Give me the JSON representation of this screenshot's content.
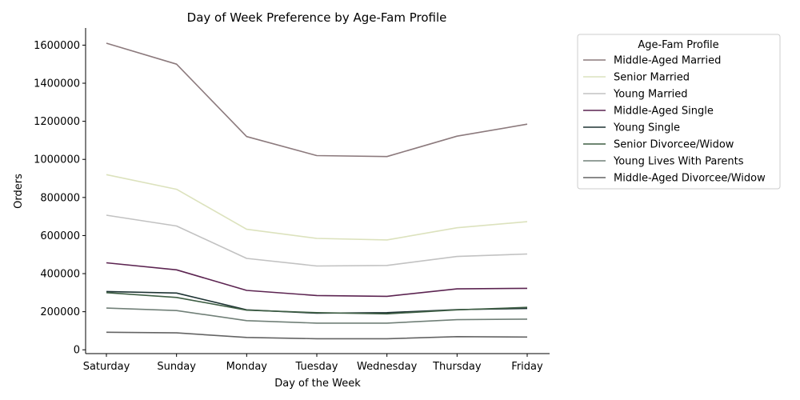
{
  "chart_data": {
    "type": "line",
    "title": "Day of Week Preference by Age-Fam Profile",
    "xlabel": "Day of the Week",
    "ylabel": "Orders",
    "categories": [
      "Saturday",
      "Sunday",
      "Monday",
      "Tuesday",
      "Wednesday",
      "Thursday",
      "Friday"
    ],
    "ylim": [
      -20000,
      1690000
    ],
    "yticks": [
      0,
      200000,
      400000,
      600000,
      800000,
      1000000,
      1200000,
      1400000,
      1600000
    ],
    "ytick_labels": [
      "0",
      "200000",
      "400000",
      "600000",
      "800000",
      "1000000",
      "1200000",
      "1400000",
      "1600000"
    ],
    "grid": false,
    "legend": {
      "title": "Age-Fam Profile",
      "placement": "outside-right"
    },
    "series": [
      {
        "name": "Middle-Aged Married",
        "color": "#8c7a7d",
        "values": [
          1610000,
          1500000,
          1120000,
          1020000,
          1015000,
          1122000,
          1185000
        ]
      },
      {
        "name": "Senior Married",
        "color": "#dce2bd",
        "values": [
          920000,
          843000,
          633000,
          585000,
          577000,
          641000,
          673000
        ]
      },
      {
        "name": "Young Married",
        "color": "#c2c2c2",
        "values": [
          707000,
          650000,
          480000,
          440000,
          443000,
          490000,
          503000
        ]
      },
      {
        "name": "Middle-Aged Single",
        "color": "#5c2451",
        "values": [
          457000,
          420000,
          312000,
          285000,
          281000,
          320000,
          323000
        ]
      },
      {
        "name": "Young Single",
        "color": "#1e3434",
        "values": [
          306000,
          298000,
          210000,
          192000,
          195000,
          211000,
          217000
        ]
      },
      {
        "name": "Senior Divorcee/Widow",
        "color": "#3e5e44",
        "values": [
          300000,
          275000,
          208000,
          195000,
          189000,
          210000,
          223000
        ]
      },
      {
        "name": "Young Lives With Parents",
        "color": "#718078",
        "values": [
          219000,
          206000,
          153000,
          140000,
          140000,
          158000,
          161000
        ]
      },
      {
        "name": "Middle-Aged Divorcee/Widow",
        "color": "#646464",
        "values": [
          92000,
          89000,
          65000,
          58000,
          58000,
          69000,
          67000
        ]
      }
    ]
  }
}
